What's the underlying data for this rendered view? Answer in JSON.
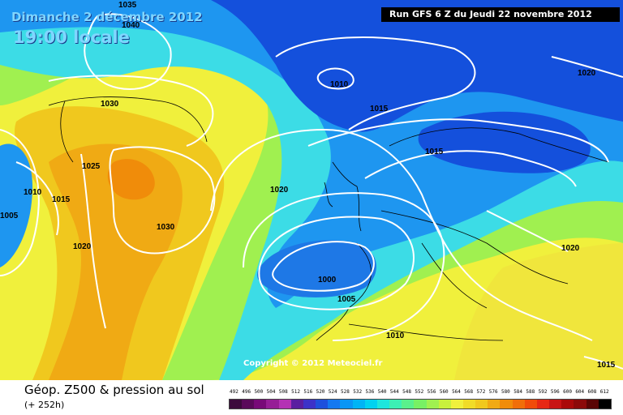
{
  "header": {
    "date": "Dimanche 2 décembre 2012",
    "time": "19:00 locale",
    "run": "Run GFS 6 Z du Jeudi 22 novembre 2012"
  },
  "copyright": "Copyright © 2012 Meteociel.fr",
  "legend": {
    "title": "Géop. Z500 & pression au sol",
    "lead": "(+ 252h)",
    "scale_values": [
      "492",
      "496",
      "500",
      "504",
      "508",
      "512",
      "516",
      "520",
      "524",
      "528",
      "532",
      "536",
      "540",
      "544",
      "548",
      "552",
      "556",
      "560",
      "564",
      "568",
      "572",
      "576",
      "580",
      "584",
      "588",
      "592",
      "596",
      "600",
      "604",
      "608",
      "612"
    ],
    "scale_colors": [
      "#3c0a3c",
      "#5a0a5a",
      "#780a78",
      "#961e96",
      "#b432b4",
      "#5a1ea0",
      "#3c32c8",
      "#1e50dc",
      "#1478f0",
      "#0a96f5",
      "#00b4f5",
      "#00d2f0",
      "#1ee6dc",
      "#3cf0b4",
      "#5af08c",
      "#78f064",
      "#a0f050",
      "#c8f03c",
      "#f0f03c",
      "#f0dc28",
      "#f0c81e",
      "#f0aa14",
      "#f08c0a",
      "#f06e0a",
      "#f04b0a",
      "#e62814",
      "#c81414",
      "#aa0a0a",
      "#8c0a0a",
      "#5a0505",
      "#000000"
    ]
  },
  "isobars": [
    "1035",
    "1040",
    "1030",
    "1025",
    "1030",
    "1010",
    "1015",
    "1005",
    "1020",
    "1010",
    "1015",
    "1015",
    "1020",
    "1000",
    "1005",
    "1010",
    "1020",
    "1020",
    "1015"
  ],
  "colors": {
    "deep_blue": "#1450dc",
    "mid_blue": "#1e96f0",
    "cyan": "#3cdce6",
    "green": "#7ef07a",
    "yellow": "#f0f03c",
    "orange": "#f0aa14",
    "dark_orange": "#f08c0a"
  }
}
